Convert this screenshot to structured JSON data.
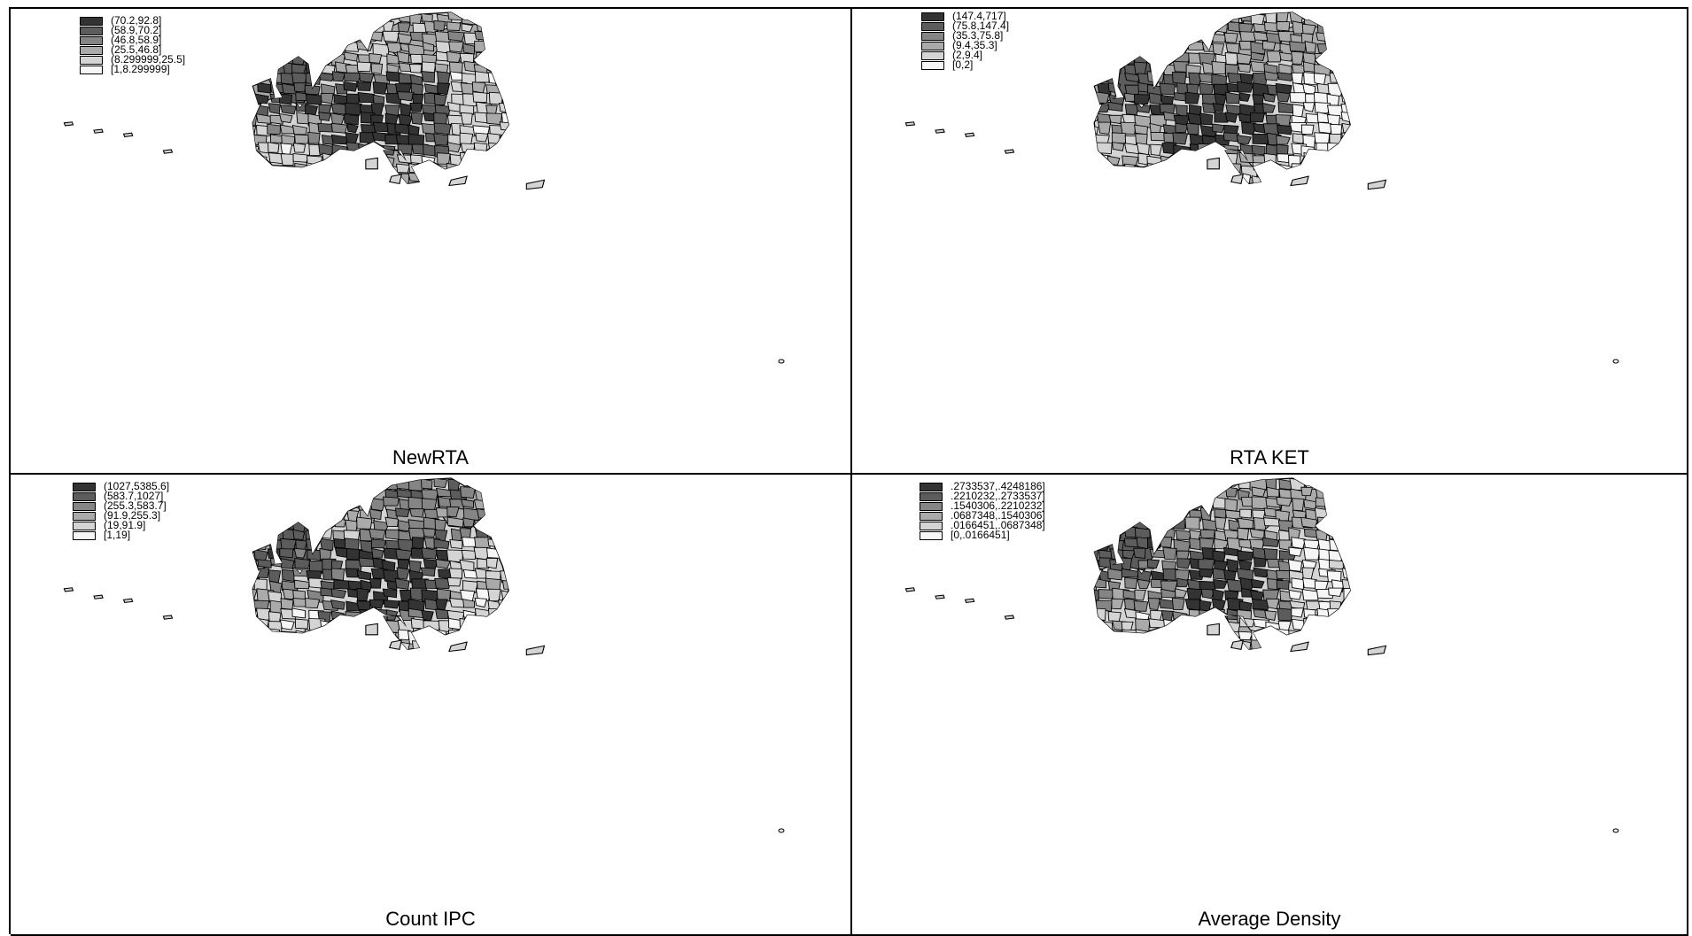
{
  "colors": {
    "class_fills": [
      "#333333",
      "#5c5c5c",
      "#858585",
      "#aaaaaa",
      "#d4d4d4",
      "#f6f6f6"
    ],
    "outline": "#000000",
    "background": "#ffffff"
  },
  "panels": [
    {
      "caption": "NewRTA",
      "legend": [
        "(70.2,92.8]",
        "(58.9,70.2]",
        "(46.8,58.9]",
        "(25.5,46.8]",
        "(8.299999,25.5]",
        "[1,8.299999]"
      ]
    },
    {
      "caption": "RTA KET",
      "legend": [
        "(147.4,717]",
        "(75.8,147.4]",
        "(35.3,75.8]",
        "(9.4,35.3]",
        "(2,9.4]",
        "[0,2]"
      ]
    },
    {
      "caption": "Count IPC",
      "legend": [
        "(1027,5385.6]",
        "(583.7,1027]",
        "(255.3,583.7]",
        "(91.9,255.3]",
        "(19,91.9]",
        "[1,19]"
      ]
    },
    {
      "caption": "Average Density",
      "legend": [
        ".2733537,.4248186]",
        ".2210232,.2733537]",
        ".1540306,.2210232]",
        ".0687348,.1540306]",
        ".0166451,.0687348]",
        "[0,.0166451]"
      ]
    }
  ]
}
